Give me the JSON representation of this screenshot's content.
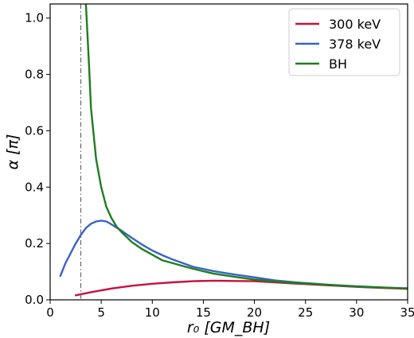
{
  "chart_data": {
    "type": "line",
    "title": "",
    "xlabel": "r₀ [GM_BH]",
    "ylabel": "α [π]",
    "xlim": [
      0,
      35
    ],
    "ylim": [
      0,
      1.05
    ],
    "xticks": [
      0,
      5,
      10,
      15,
      20,
      25,
      30,
      35
    ],
    "yticks": [
      0.0,
      0.2,
      0.4,
      0.6,
      0.8,
      1.0
    ],
    "x_tick_labels": [
      "0",
      "5",
      "10",
      "15",
      "20",
      "25",
      "30",
      "35"
    ],
    "y_tick_labels": [
      "0.0",
      "0.2",
      "0.4",
      "0.6",
      "0.8",
      "1.0"
    ],
    "grid": false,
    "legend_position": "top-right",
    "vertical_reference_line": {
      "x": 3,
      "style": "dash-dot",
      "color": "#666666"
    },
    "series": [
      {
        "name": "300 keV",
        "color": "#c8103d",
        "x": [
          2.5,
          4,
          6,
          8,
          10,
          12,
          14,
          16,
          18,
          20,
          22,
          24,
          26,
          28,
          30,
          32,
          35
        ],
        "y": [
          0.016,
          0.027,
          0.04,
          0.05,
          0.057,
          0.062,
          0.066,
          0.068,
          0.067,
          0.066,
          0.062,
          0.058,
          0.054,
          0.05,
          0.046,
          0.043,
          0.039
        ]
      },
      {
        "name": "378 keV",
        "color": "#3a62c9",
        "x": [
          1,
          1.5,
          2,
          2.5,
          3,
          3.5,
          4,
          4.5,
          5,
          5.5,
          6,
          7,
          8,
          9,
          10,
          11,
          12,
          14,
          16,
          18,
          20,
          22,
          24,
          26,
          28,
          30,
          32,
          35
        ],
        "y": [
          0.085,
          0.13,
          0.165,
          0.2,
          0.23,
          0.255,
          0.27,
          0.278,
          0.281,
          0.278,
          0.268,
          0.245,
          0.22,
          0.196,
          0.175,
          0.158,
          0.143,
          0.117,
          0.102,
          0.09,
          0.08,
          0.069,
          0.062,
          0.057,
          0.051,
          0.047,
          0.044,
          0.041
        ]
      },
      {
        "name": "BH",
        "color": "#1e7e1e",
        "x": [
          3.5,
          3.8,
          4,
          4.5,
          5,
          5.5,
          6,
          6.5,
          7,
          8,
          9,
          10,
          11,
          12,
          13,
          14,
          16,
          18,
          20,
          22,
          25,
          30,
          35
        ],
        "y": [
          1.05,
          0.84,
          0.68,
          0.5,
          0.4,
          0.33,
          0.29,
          0.26,
          0.24,
          0.205,
          0.18,
          0.16,
          0.14,
          0.13,
          0.12,
          0.11,
          0.093,
          0.082,
          0.072,
          0.065,
          0.058,
          0.048,
          0.04
        ]
      }
    ]
  }
}
